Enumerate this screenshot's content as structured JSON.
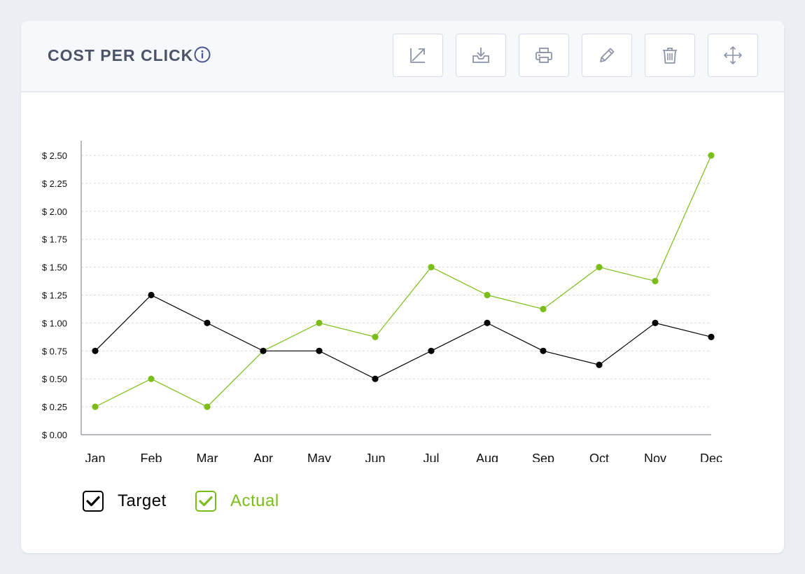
{
  "header": {
    "title": "COST PER CLICK",
    "info_icon": "info-icon",
    "toolbar": [
      {
        "id": "expand",
        "icon": "trend-arrow-icon"
      },
      {
        "id": "download",
        "icon": "download-tray-icon"
      },
      {
        "id": "print",
        "icon": "printer-icon"
      },
      {
        "id": "edit",
        "icon": "pencil-icon"
      },
      {
        "id": "delete",
        "icon": "trash-icon"
      },
      {
        "id": "move",
        "icon": "move-arrows-icon"
      }
    ]
  },
  "colors": {
    "target": "#000000",
    "actual": "#7cbd1a",
    "grid": "#d6dae0",
    "axis": "#8a8f99",
    "title": "#4b5368",
    "icon": "#8d94a8"
  },
  "chart_data": {
    "type": "line",
    "categories": [
      "Jan",
      "Feb",
      "Mar",
      "Apr",
      "May",
      "Jun",
      "Jul",
      "Aug",
      "Sep",
      "Oct",
      "Nov",
      "Dec"
    ],
    "yticks": [
      "$ 0.00",
      "$ 0.25",
      "$ 0.50",
      "$ 0.75",
      "$ 1.00",
      "$ 1.25",
      "$ 1.50",
      "$ 1.75",
      "$ 2.00",
      "$ 2.25",
      "$ 2.50"
    ],
    "ylim": [
      0,
      2.5
    ],
    "grid": true,
    "legend_position": "bottom-left",
    "series": [
      {
        "name": "Target",
        "color": "#000000",
        "values": [
          0.75,
          1.25,
          1.0,
          0.75,
          0.75,
          0.5,
          0.75,
          1.0,
          0.75,
          0.625,
          1.0,
          0.875
        ]
      },
      {
        "name": "Actual",
        "color": "#7cbd1a",
        "values": [
          0.25,
          0.5,
          0.25,
          0.75,
          1.0,
          0.875,
          1.5,
          1.25,
          1.125,
          1.5,
          1.375,
          2.5
        ]
      }
    ]
  }
}
